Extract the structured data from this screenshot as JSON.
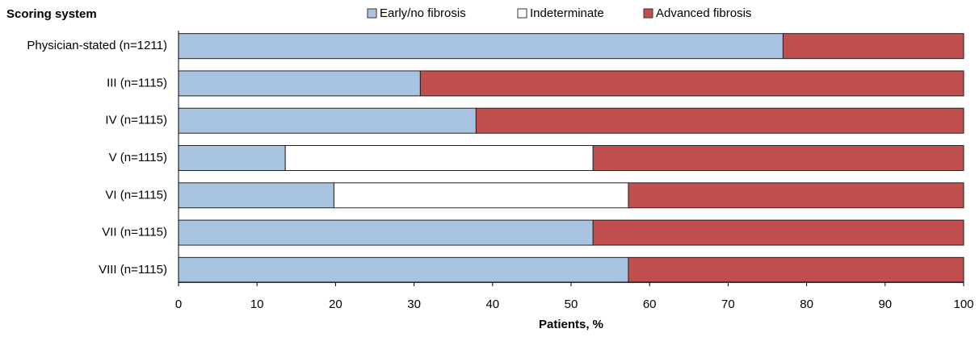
{
  "chart_data": {
    "type": "stacked-bar-horizontal",
    "title": "Scoring system",
    "x_label": "Patients, %",
    "categories": [
      "Physician-stated (n=1211)",
      "III (n=1115)",
      "IV (n=1115)",
      "V (n=1115)",
      "VI (n=1115)",
      "VII (n=1115)",
      "VIII (n=1115)"
    ],
    "series": [
      {
        "name": "Early/no fibrosis",
        "color": "#a9c3e2",
        "values": [
          77,
          30.8,
          37.9,
          13.6,
          19.8,
          52.8,
          57.3
        ]
      },
      {
        "name": "Indeterminate",
        "color": "#ffffff",
        "values": [
          0,
          0,
          0,
          39.2,
          37.5,
          0,
          0
        ]
      },
      {
        "name": "Advanced fibrosis",
        "color": "#c0504d",
        "values": [
          23,
          69.2,
          62.1,
          47.2,
          42.7,
          47.2,
          42.7
        ]
      }
    ],
    "xlim": [
      0,
      100
    ],
    "xticks": [
      0,
      10,
      20,
      30,
      40,
      50,
      60,
      70,
      80,
      90,
      100
    ],
    "legend": "top"
  }
}
